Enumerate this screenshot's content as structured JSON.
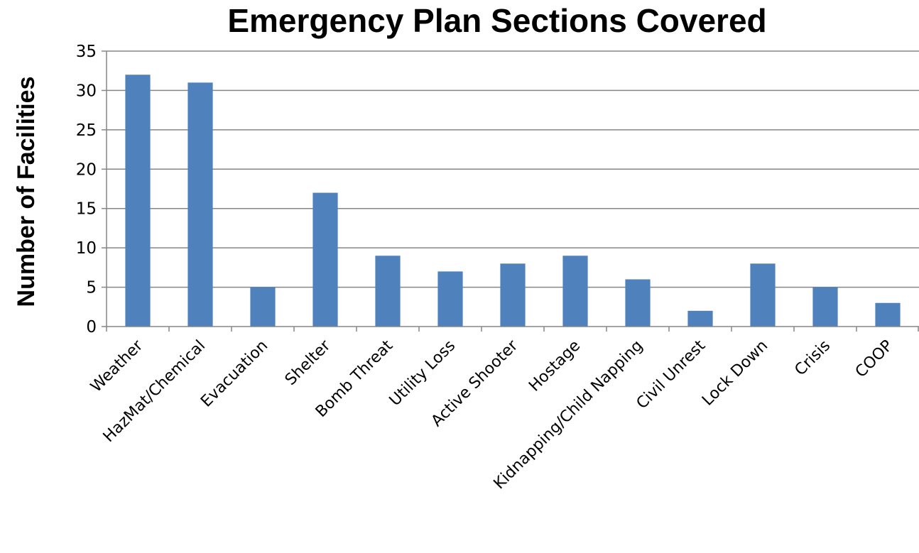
{
  "chart_data": {
    "type": "bar",
    "title": "Emergency Plan Sections Covered",
    "xlabel": "",
    "ylabel": "Number of Facilities",
    "categories": [
      "Weather",
      "HazMat/Chemical",
      "Evacuation",
      "Shelter",
      "Bomb Threat",
      "Utility Loss",
      "Active Shooter",
      "Hostage",
      "Kidnapping/Child Napping",
      "Civil Unrest",
      "Lock Down",
      "Crisis",
      "COOP"
    ],
    "values": [
      32,
      31,
      5,
      17,
      9,
      7,
      8,
      9,
      6,
      2,
      8,
      5,
      3
    ],
    "ylim": [
      0,
      35
    ],
    "yticks": [
      "0",
      "5",
      "10",
      "15",
      "20",
      "25",
      "30",
      "35"
    ],
    "grid": true,
    "legend": "none",
    "colors": {
      "bar": "#4f81bd",
      "grid": "#868686",
      "axis": "#868686"
    }
  }
}
